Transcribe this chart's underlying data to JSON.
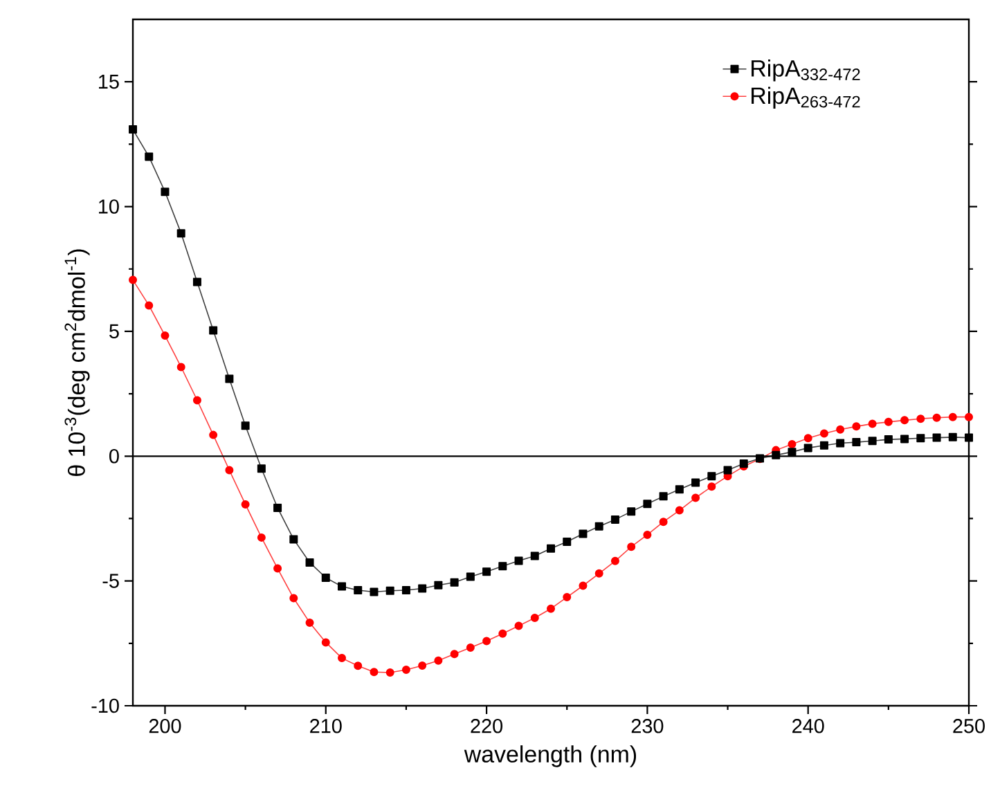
{
  "chart_data": {
    "type": "line",
    "xlabel": "wavelength (nm)",
    "ylabel": "θ 10$^{-3}$(deg cm$^{2}$dmol$^{-1}$)",
    "x": [
      198,
      199,
      200,
      201,
      202,
      203,
      204,
      205,
      206,
      207,
      208,
      209,
      210,
      211,
      212,
      213,
      214,
      215,
      216,
      217,
      218,
      219,
      220,
      221,
      222,
      223,
      224,
      225,
      226,
      227,
      228,
      229,
      230,
      231,
      232,
      233,
      234,
      235,
      236,
      237,
      238,
      239,
      240,
      241,
      242,
      243,
      244,
      245,
      246,
      247,
      248,
      249,
      250
    ],
    "series": [
      {
        "name": "RipA$_{332-472}$",
        "color": "#000000",
        "marker": "square",
        "values": [
          13.09,
          12.0,
          10.59,
          8.93,
          6.98,
          5.04,
          3.1,
          1.22,
          -0.5,
          -2.07,
          -3.33,
          -4.26,
          -4.87,
          -5.22,
          -5.37,
          -5.44,
          -5.39,
          -5.37,
          -5.3,
          -5.17,
          -5.06,
          -4.83,
          -4.63,
          -4.41,
          -4.19,
          -4.0,
          -3.7,
          -3.43,
          -3.11,
          -2.81,
          -2.54,
          -2.22,
          -1.91,
          -1.61,
          -1.33,
          -1.06,
          -0.8,
          -0.56,
          -0.3,
          -0.09,
          0.04,
          0.17,
          0.33,
          0.43,
          0.52,
          0.56,
          0.61,
          0.67,
          0.69,
          0.72,
          0.74,
          0.76,
          0.74
        ]
      },
      {
        "name": "RipA$_{263-472}$",
        "color": "#ff0000",
        "marker": "circle",
        "values": [
          7.06,
          6.04,
          4.83,
          3.57,
          2.24,
          0.85,
          -0.56,
          -1.93,
          -3.26,
          -4.5,
          -5.69,
          -6.67,
          -7.46,
          -8.09,
          -8.4,
          -8.65,
          -8.67,
          -8.56,
          -8.39,
          -8.19,
          -7.93,
          -7.67,
          -7.41,
          -7.11,
          -6.8,
          -6.48,
          -6.11,
          -5.65,
          -5.19,
          -4.7,
          -4.2,
          -3.63,
          -3.15,
          -2.63,
          -2.17,
          -1.67,
          -1.22,
          -0.8,
          -0.41,
          -0.11,
          0.24,
          0.48,
          0.72,
          0.91,
          1.07,
          1.19,
          1.3,
          1.37,
          1.44,
          1.5,
          1.54,
          1.57,
          1.57
        ]
      }
    ],
    "xlim": [
      198,
      250
    ],
    "xticks": [
      200,
      210,
      220,
      230,
      240,
      250
    ],
    "ylim": [
      -10,
      17.5
    ],
    "yticks": [
      -10,
      -5,
      0,
      5,
      10,
      15
    ],
    "ref_lines": [
      {
        "axis": "y",
        "value": 0,
        "color": "#000000"
      }
    ],
    "legend": "top right",
    "grid": false,
    "line_style": "solid"
  }
}
